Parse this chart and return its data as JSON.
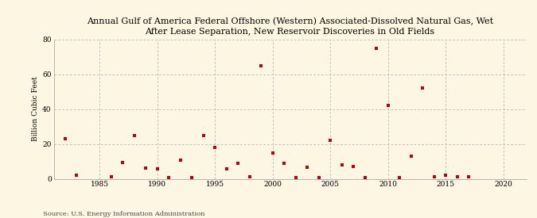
{
  "title": "Annual Gulf of America Federal Offshore (Western) Associated-Dissolved Natural Gas, Wet\nAfter Lease Separation, New Reservoir Discoveries in Old Fields",
  "ylabel": "Billion Cubic Feet",
  "source": "Source: U.S. Energy Information Administration",
  "background_color": "#fdf6e3",
  "marker_color": "#c0000b",
  "xlim": [
    1981,
    2022
  ],
  "ylim": [
    0,
    80
  ],
  "xticks": [
    1985,
    1990,
    1995,
    2000,
    2005,
    2010,
    2015,
    2020
  ],
  "yticks": [
    0,
    20,
    40,
    60,
    80
  ],
  "data": {
    "1982": 23.0,
    "1983": 2.0,
    "1986": 1.0,
    "1987": 9.5,
    "1988": 25.0,
    "1989": 6.0,
    "1990": 5.5,
    "1991": 0.5,
    "1992": 10.5,
    "1993": 0.5,
    "1994": 25.0,
    "1995": 18.0,
    "1996": 5.5,
    "1997": 9.0,
    "1998": 1.0,
    "1999": 65.0,
    "2000": 15.0,
    "2001": 9.0,
    "2002": 0.5,
    "2003": 6.5,
    "2004": 0.5,
    "2005": 22.0,
    "2006": 8.0,
    "2007": 7.0,
    "2008": 0.5,
    "2009": 75.0,
    "2010": 42.0,
    "2011": 0.5,
    "2012": 13.0,
    "2013": 52.0,
    "2014": 1.0,
    "2015": 2.0,
    "2016": 1.0,
    "2017": 1.0
  }
}
